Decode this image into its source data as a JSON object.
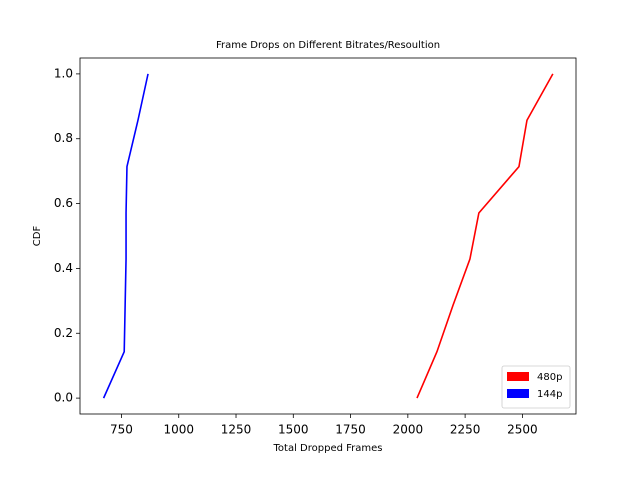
{
  "chart_data": {
    "type": "line",
    "title": "Frame Drops on Different Bitrates/Resoultion",
    "x_label": "Total Dropped Frames",
    "y_label": "CDF",
    "series": [
      {
        "name": "480p",
        "color": "#ff0000",
        "x": [
          2040,
          2127,
          2197,
          2271,
          2310,
          2485,
          2520,
          2633
        ],
        "values": [
          0,
          0.143,
          0.286,
          0.429,
          0.571,
          0.714,
          0.857,
          1
        ]
      },
      {
        "name": "144p",
        "color": "#0000ff",
        "x": [
          672,
          762,
          766,
          770,
          770,
          774,
          822,
          866
        ],
        "values": [
          0,
          0.143,
          0.286,
          0.429,
          0.571,
          0.714,
          0.857,
          1
        ]
      }
    ],
    "xlim": [
      569,
      2734
    ],
    "ylim": [
      -0.049,
      1.049
    ],
    "xticks": [
      750,
      1000,
      1250,
      1500,
      1750,
      2000,
      2250,
      2500
    ],
    "yticks": [
      {
        "value": 0,
        "label": "0.0"
      },
      0.2,
      0.4,
      0.6,
      0.8,
      {
        "value": 1,
        "label": "1.0"
      }
    ],
    "legend": "lower right",
    "grid": false
  }
}
